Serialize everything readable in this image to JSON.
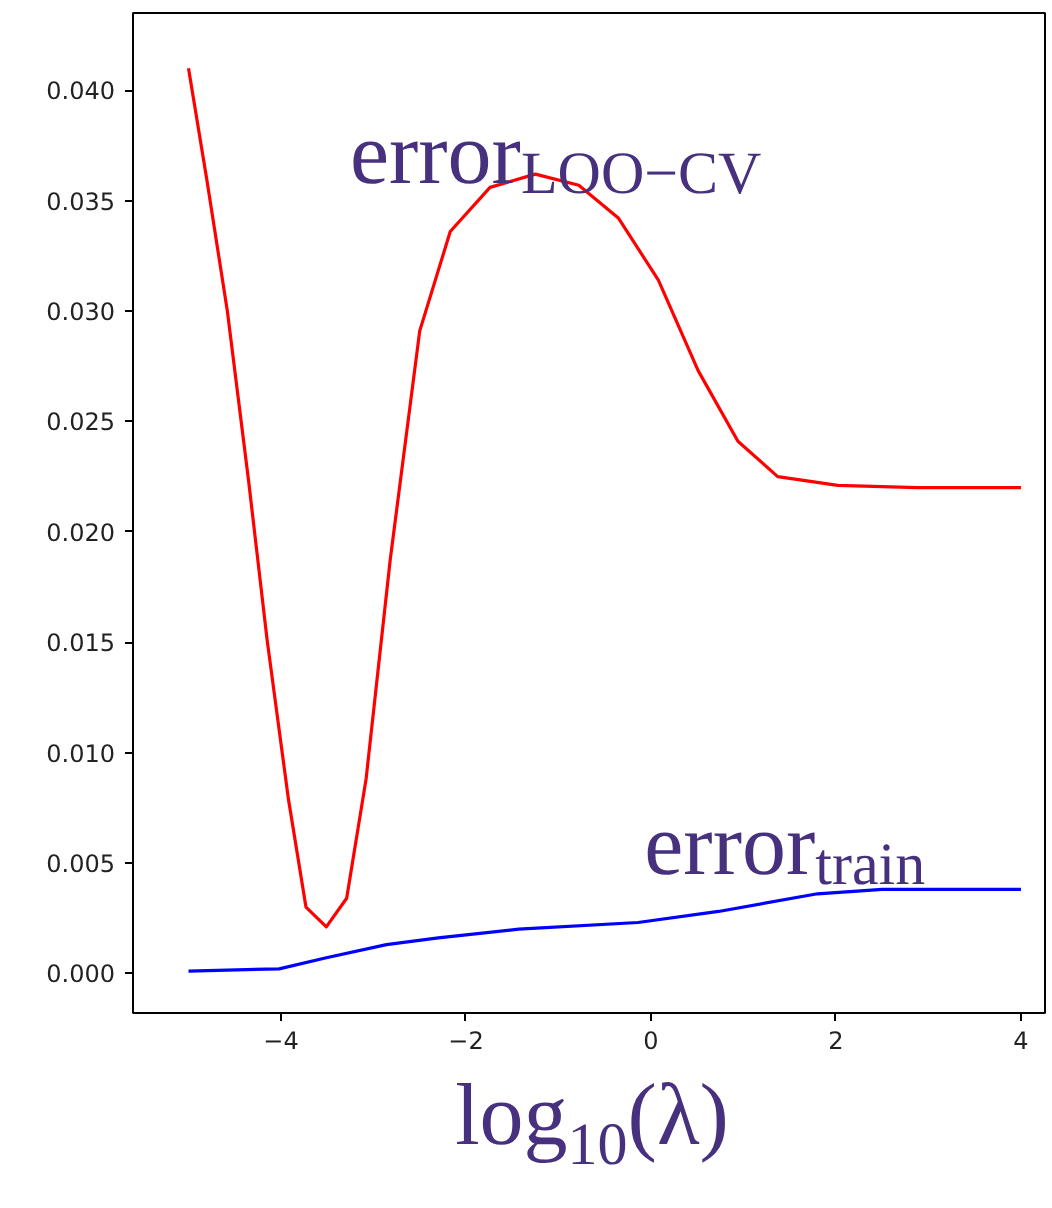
{
  "chart_data": {
    "type": "line",
    "xlabel": "log$_{10}$(λ)",
    "xlim": [
      -5.6,
      4.26
    ],
    "ylim": [
      -0.0018,
      0.0435
    ],
    "xticks": [
      {
        "value": -4,
        "label": "−4"
      },
      {
        "value": -2,
        "label": "−2"
      },
      0,
      2,
      4
    ],
    "yticks": [
      {
        "value": 0,
        "label": "0.000"
      },
      0.005,
      {
        "value": 0.01,
        "label": "0.010"
      },
      {
        "value": 0.015,
        "label": "0.015"
      },
      {
        "value": 0.02,
        "label": "0.020"
      },
      0.025,
      {
        "value": 0.03,
        "label": "0.030"
      },
      0.035,
      {
        "value": 0.04,
        "label": "0.040"
      }
    ],
    "grid": false,
    "series": [
      {
        "name": "error$_{LOO−CV}$",
        "color": "#ff0000",
        "x": [
          -5,
          -4.8,
          -4.58,
          -4.35,
          -4.15,
          -3.92,
          -3.73,
          -3.51,
          -3.29,
          -3.08,
          -2.82,
          -2.5,
          -2.17,
          -1.74,
          -1.25,
          -0.78,
          -0.35,
          0.08,
          0.51,
          0.94,
          1.37,
          2.02,
          2.88,
          4
        ],
        "values": [
          0.041,
          0.0359,
          0.03,
          0.0223,
          0.0151,
          0.0079,
          0.003,
          0.0021,
          0.0034,
          0.0088,
          0.0187,
          0.0291,
          0.0336,
          0.0356,
          0.0362,
          0.0357,
          0.0342,
          0.0314,
          0.0273,
          0.0241,
          0.0225,
          0.0221,
          0.022,
          0.022
        ]
      },
      {
        "name": "error$_{train}$",
        "color": "#0000ff",
        "x": [
          -5,
          -4.02,
          -3.51,
          -2.86,
          -2.3,
          -1.43,
          -0.14,
          0.73,
          1.8,
          2.5,
          4
        ],
        "values": [
          0.0001,
          0.0002,
          0.0007,
          0.0013,
          0.0016,
          0.002,
          0.0023,
          0.0028,
          0.0036,
          0.0038,
          0.0038
        ]
      }
    ]
  }
}
